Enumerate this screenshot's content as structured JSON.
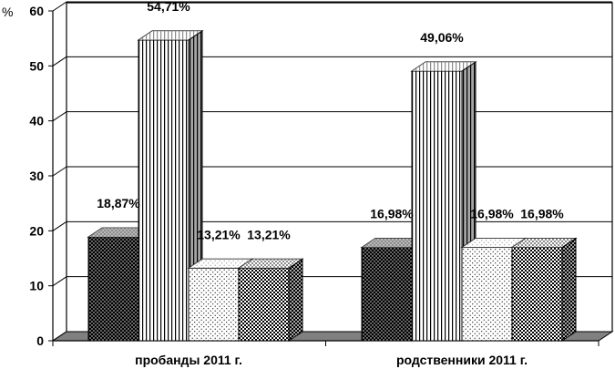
{
  "chart_data": {
    "type": "bar",
    "categories": [
      "пробанды 2011 г.",
      "родственники 2011 г."
    ],
    "series": [
      {
        "pattern": "dark-dots",
        "values": [
          18.87,
          16.98
        ],
        "labels": [
          "18,87%",
          "16,98%"
        ]
      },
      {
        "pattern": "vertical-stripes",
        "values": [
          54.71,
          49.06
        ],
        "labels": [
          "54,71%",
          "49,06%"
        ]
      },
      {
        "pattern": "light-dots",
        "values": [
          13.21,
          16.98
        ],
        "labels": [
          "13,21%",
          "16,98%"
        ]
      },
      {
        "pattern": "checker",
        "values": [
          13.21,
          16.98
        ],
        "labels": [
          "13,21%",
          "16,98%"
        ]
      }
    ],
    "ylabel": "%",
    "ylim": [
      0,
      60
    ],
    "yticks": [
      "0",
      "10",
      "20",
      "30",
      "40",
      "50",
      "60"
    ],
    "grid": true,
    "legend": "none"
  }
}
